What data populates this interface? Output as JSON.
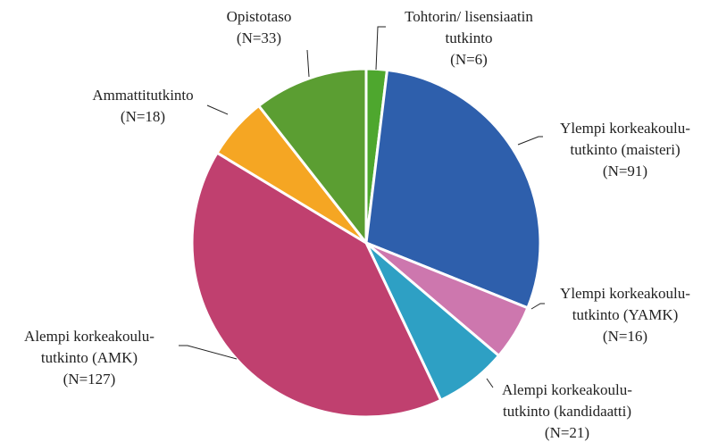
{
  "chart_data": {
    "type": "pie",
    "categories": [
      [
        "Tohtorin/ lisensiaatin",
        "tutkinto"
      ],
      [
        "Ylempi korkeakoulu-",
        "tutkinto (maisteri)"
      ],
      [
        "Ylempi korkeakoulu-",
        "tutkinto (YAMK)"
      ],
      [
        "Alempi korkeakoulu-",
        "tutkinto (kandidaatti)"
      ],
      [
        "Alempi korkeakoulu-",
        "tutkinto (AMK)"
      ],
      [
        "Ammattitutkinto"
      ],
      [
        "Opistotaso"
      ]
    ],
    "values": [
      6,
      91,
      16,
      21,
      127,
      18,
      33
    ],
    "value_labels": [
      "(N=6)",
      "(N=91)",
      "(N=16)",
      "(N=21)",
      "(N=127)",
      "(N=18)",
      "(N=33)"
    ],
    "colors": [
      "#4ea72e",
      "#2e5fac",
      "#cd77ae",
      "#2ea0c4",
      "#c0406f",
      "#f5a623",
      "#5b9e32"
    ]
  }
}
